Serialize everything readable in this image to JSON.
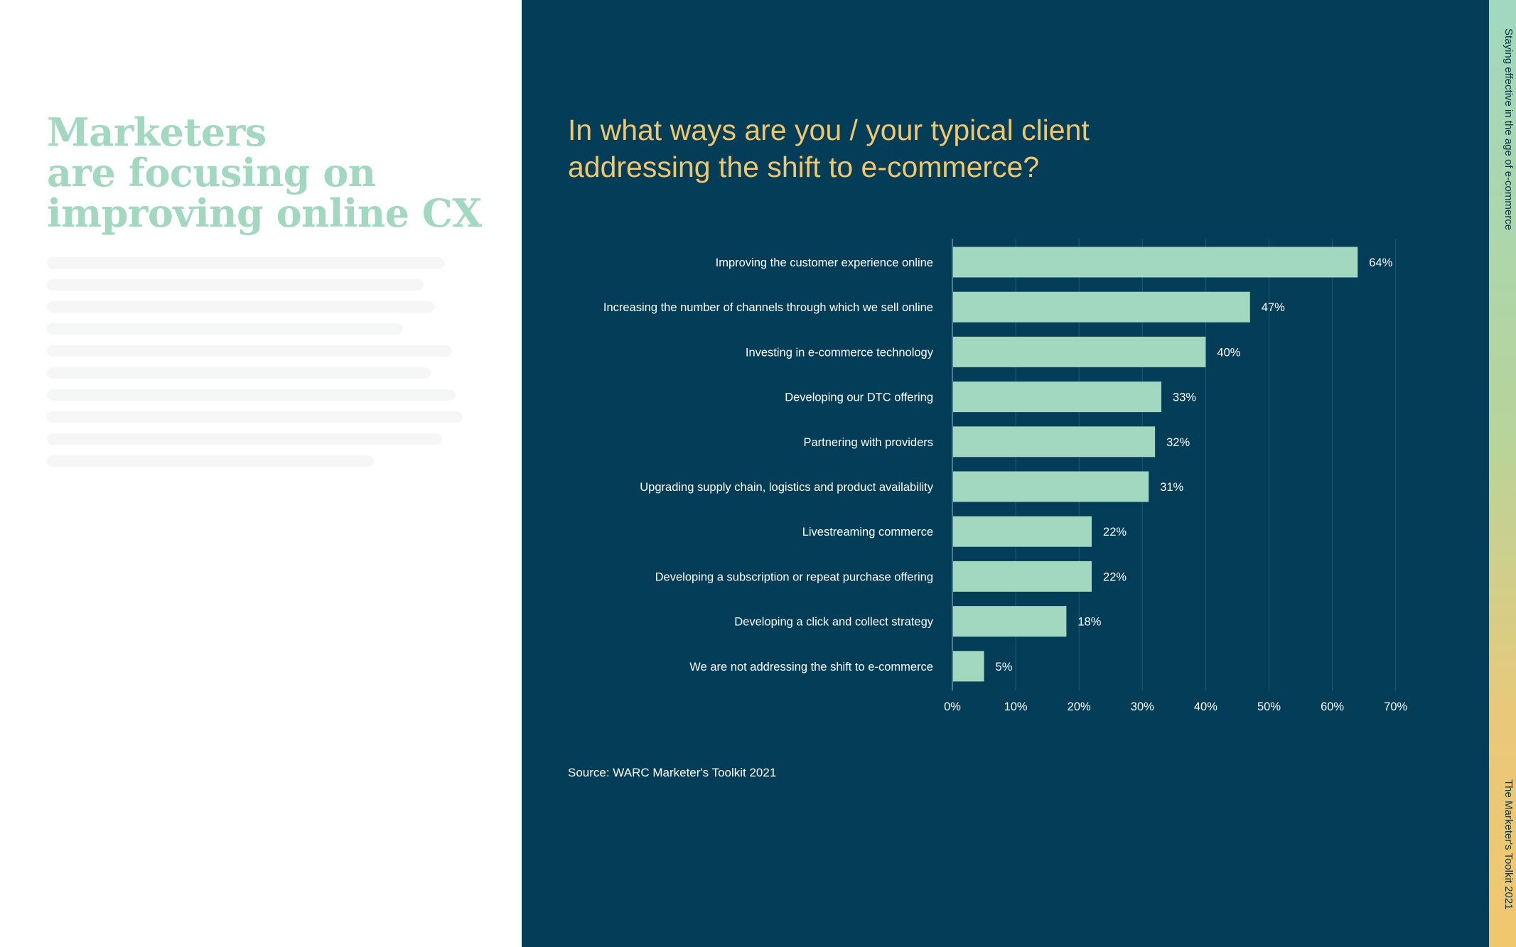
{
  "headline": [
    "Marketers",
    "are focusing on",
    "improving online CX"
  ],
  "question": [
    "In what ways are you / your typical client",
    "addressing the shift to e-commerce?"
  ],
  "source": "Source: WARC Marketer's Toolkit 2021",
  "side_strip": {
    "top_label": "Staying effective in the age of e-commerce",
    "bottom_label": "The Marketer's Toolkit 2021"
  },
  "colors": {
    "background_dark": "#033d57",
    "accent_green": "#a1d8bf",
    "accent_yellow": "#f1c76e",
    "text_light": "#ffffff"
  },
  "chart_data": {
    "type": "bar",
    "orientation": "horizontal",
    "categories": [
      "Improving the customer experience online",
      "Increasing the number of channels through which we sell online",
      "Investing in e-commerce technology",
      "Developing our DTC offering",
      "Partnering with providers",
      "Upgrading supply chain, logistics and product availability",
      "Livestreaming commerce",
      "Developing a subscription or repeat purchase offering",
      "Developing a click and collect strategy",
      "We are not addressing the shift to e-commerce"
    ],
    "values": [
      64,
      47,
      40,
      33,
      32,
      31,
      22,
      22,
      18,
      5
    ],
    "value_labels": [
      "64%",
      "47%",
      "40%",
      "33%",
      "32%",
      "31%",
      "22%",
      "22%",
      "18%",
      "5%"
    ],
    "xlim": [
      0,
      70
    ],
    "xticks": [
      0,
      10,
      20,
      30,
      40,
      50,
      60,
      70
    ],
    "xtick_labels": [
      "0%",
      "10%",
      "20%",
      "30%",
      "40%",
      "50%",
      "60%",
      "70%"
    ],
    "grid": true,
    "bar_color": "#a1d8bf"
  }
}
